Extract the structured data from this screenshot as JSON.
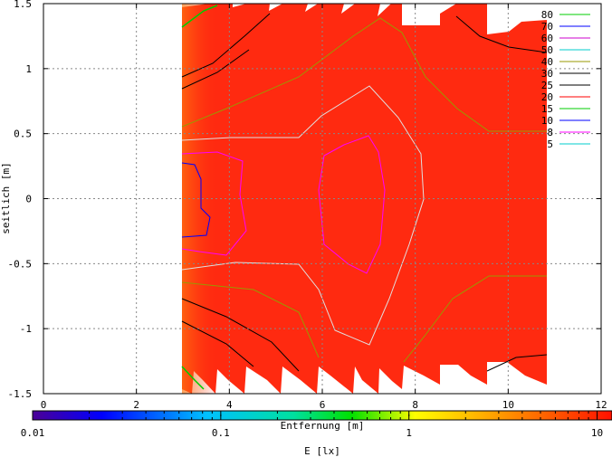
{
  "chart_data": {
    "type": "heatmap",
    "title": "",
    "xlabel": "Entfernung [m]",
    "ylabel": "seitlich [m]",
    "xlim": [
      0,
      12
    ],
    "ylim": [
      -1.5,
      1.5
    ],
    "x_ticks": [
      "0",
      "2",
      "4",
      "6",
      "8",
      "10",
      "12"
    ],
    "y_ticks": [
      "1.5",
      "1",
      "0.5",
      "0",
      "-0.5",
      "-1",
      "-1.5"
    ],
    "grid": true,
    "colorbar": {
      "label": "E [lx]",
      "scale": "log",
      "range": [
        0.01,
        12
      ],
      "ticks": [
        "0.01",
        "0.1",
        "1",
        "10"
      ]
    },
    "contour_legend": {
      "placement": "top-right",
      "entries": [
        {
          "label": "80",
          "color": "#00cc00"
        },
        {
          "label": "70",
          "color": "#0000ff"
        },
        {
          "label": "60",
          "color": "#cc00cc"
        },
        {
          "label": "50",
          "color": "#00cccc"
        },
        {
          "label": "40",
          "color": "#999900"
        },
        {
          "label": "30",
          "color": "#000000"
        },
        {
          "label": "25",
          "color": "#000000"
        },
        {
          "label": "20",
          "color": "#ff0000"
        },
        {
          "label": "15",
          "color": "#00cc00"
        },
        {
          "label": "10",
          "color": "#0000ff"
        },
        {
          "label": "8",
          "color": "#ff00ff"
        },
        {
          "label": "5",
          "color": "#00cccc"
        }
      ]
    },
    "field_fill_color": "#ff2a10"
  }
}
